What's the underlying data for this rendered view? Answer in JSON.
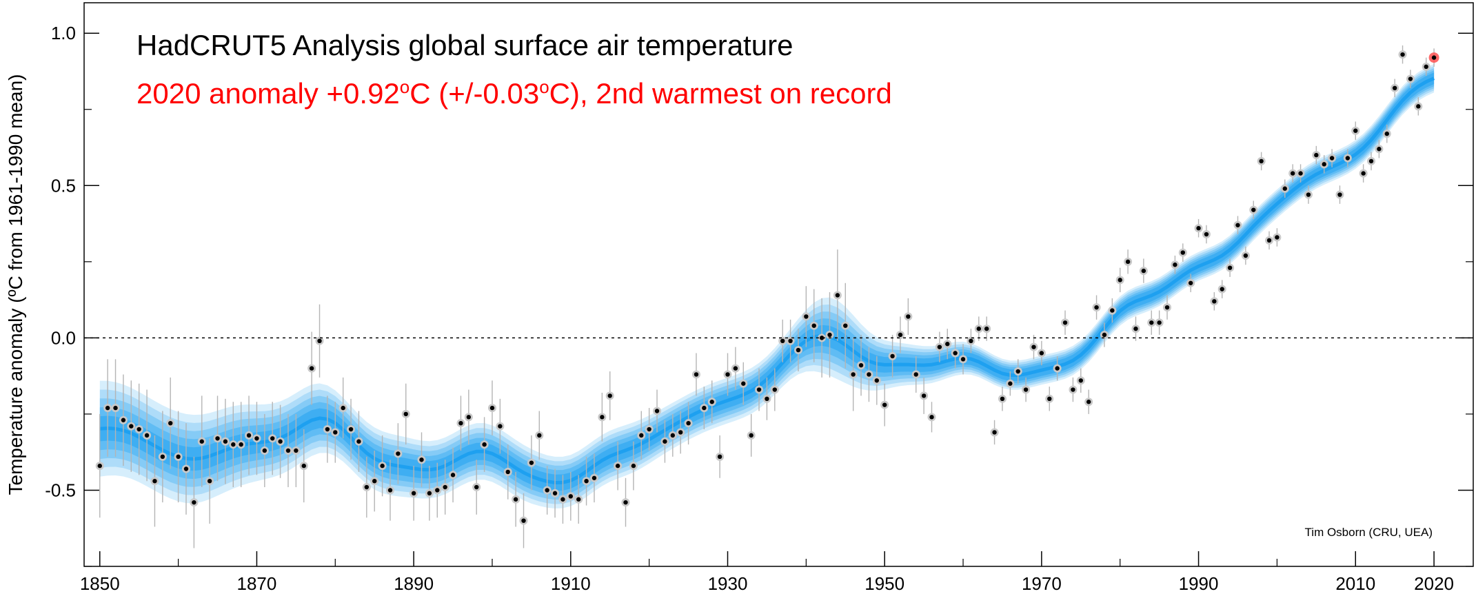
{
  "chart_data": {
    "type": "scatter",
    "title": "HadCRUT5 Analysis global surface air temperature",
    "subtitle_prefix": "2020 anomaly +0.92",
    "subtitle_mid": "C (+/-0.03",
    "subtitle_suffix": "C), 2nd warmest on record",
    "degree_symbol": "o",
    "ylabel": "Temperature anomaly (ºC from 1961-1990 mean)",
    "credit": "Tim Osborn (CRU, UEA)",
    "xlim": [
      1848,
      2025
    ],
    "ylim": [
      -0.75,
      1.1
    ],
    "x_ticks": [
      1850,
      1870,
      1890,
      1910,
      1930,
      1950,
      1970,
      1990,
      2010,
      2020
    ],
    "x_tick_labels": [
      "1850",
      "1870",
      "1890",
      "1910",
      "1930",
      "1950",
      "1970",
      "1990",
      "2010",
      "2020"
    ],
    "y_ticks": [
      -0.5,
      0.0,
      0.5,
      1.0
    ],
    "y_tick_labels": [
      "-0.5",
      "0.0",
      "0.5",
      "1.0"
    ],
    "zero_line": true,
    "highlight_year": 2020,
    "colors": {
      "band": "#1ea0f0",
      "points": "#000000",
      "point_halo": "#c8c8c8",
      "error_bar": "#b4b4b4",
      "highlight": "#ff5050",
      "subtitle": "#ff0000"
    },
    "series": [
      {
        "years": [
          1850,
          1851,
          1852,
          1853,
          1854,
          1855,
          1856,
          1857,
          1858,
          1859,
          1860,
          1861,
          1862,
          1863,
          1864,
          1865,
          1866,
          1867,
          1868,
          1869,
          1870,
          1871,
          1872,
          1873,
          1874,
          1875,
          1876,
          1877,
          1878,
          1879,
          1880,
          1881,
          1882,
          1883,
          1884,
          1885,
          1886,
          1887,
          1888,
          1889,
          1890,
          1891,
          1892,
          1893,
          1894,
          1895,
          1896,
          1897,
          1898,
          1899,
          1900,
          1901,
          1902,
          1903,
          1904,
          1905,
          1906,
          1907,
          1908,
          1909,
          1910,
          1911,
          1912,
          1913,
          1914,
          1915,
          1916,
          1917,
          1918,
          1919,
          1920,
          1921,
          1922,
          1923,
          1924,
          1925,
          1926,
          1927,
          1928,
          1929,
          1930,
          1931,
          1932,
          1933,
          1934,
          1935,
          1936,
          1937,
          1938,
          1939,
          1940,
          1941,
          1942,
          1943,
          1944,
          1945,
          1946,
          1947,
          1948,
          1949,
          1950,
          1951,
          1952,
          1953,
          1954,
          1955,
          1956,
          1957,
          1958,
          1959,
          1960,
          1961,
          1962,
          1963,
          1964,
          1965,
          1966,
          1967,
          1968,
          1969,
          1970,
          1971,
          1972,
          1973,
          1974,
          1975,
          1976,
          1977,
          1978,
          1979,
          1980,
          1981,
          1982,
          1983,
          1984,
          1985,
          1986,
          1987,
          1988,
          1989,
          1990,
          1991,
          1992,
          1993,
          1994,
          1995,
          1996,
          1997,
          1998,
          1999,
          2000,
          2001,
          2002,
          2003,
          2004,
          2005,
          2006,
          2007,
          2008,
          2009,
          2010,
          2011,
          2012,
          2013,
          2014,
          2015,
          2016,
          2017,
          2018,
          2019,
          2020
        ],
        "anomaly": [
          -0.42,
          -0.23,
          -0.23,
          -0.27,
          -0.29,
          -0.3,
          -0.32,
          -0.47,
          -0.39,
          -0.28,
          -0.39,
          -0.43,
          -0.54,
          -0.34,
          -0.47,
          -0.33,
          -0.34,
          -0.35,
          -0.35,
          -0.32,
          -0.33,
          -0.37,
          -0.33,
          -0.34,
          -0.37,
          -0.37,
          -0.42,
          -0.1,
          -0.01,
          -0.3,
          -0.31,
          -0.23,
          -0.3,
          -0.34,
          -0.49,
          -0.47,
          -0.42,
          -0.5,
          -0.38,
          -0.25,
          -0.51,
          -0.4,
          -0.51,
          -0.5,
          -0.49,
          -0.45,
          -0.28,
          -0.26,
          -0.49,
          -0.35,
          -0.23,
          -0.29,
          -0.44,
          -0.53,
          -0.6,
          -0.41,
          -0.32,
          -0.5,
          -0.51,
          -0.53,
          -0.52,
          -0.53,
          -0.47,
          -0.46,
          -0.26,
          -0.19,
          -0.42,
          -0.54,
          -0.42,
          -0.32,
          -0.3,
          -0.24,
          -0.34,
          -0.32,
          -0.31,
          -0.28,
          -0.12,
          -0.23,
          -0.21,
          -0.39,
          -0.12,
          -0.1,
          -0.15,
          -0.32,
          -0.17,
          -0.2,
          -0.17,
          -0.01,
          -0.01,
          -0.04,
          0.07,
          0.04,
          0.0,
          0.01,
          0.14,
          0.04,
          -0.12,
          -0.09,
          -0.12,
          -0.14,
          -0.22,
          -0.06,
          0.01,
          0.07,
          -0.12,
          -0.19,
          -0.26,
          -0.03,
          -0.02,
          -0.05,
          -0.07,
          -0.01,
          0.03,
          0.03,
          -0.31,
          -0.2,
          -0.15,
          -0.11,
          -0.17,
          -0.03,
          -0.05,
          -0.2,
          -0.1,
          0.05,
          -0.17,
          -0.14,
          -0.21,
          0.1,
          0.01,
          0.09,
          0.19,
          0.25,
          0.03,
          0.22,
          0.05,
          0.05,
          0.1,
          0.24,
          0.28,
          0.18,
          0.36,
          0.34,
          0.12,
          0.16,
          0.23,
          0.37,
          0.27,
          0.42,
          0.58,
          0.32,
          0.33,
          0.49,
          0.54,
          0.54,
          0.47,
          0.6,
          0.57,
          0.59,
          0.47,
          0.59,
          0.68,
          0.54,
          0.58,
          0.62,
          0.67,
          0.82,
          0.93,
          0.85,
          0.76,
          0.89,
          0.92
        ],
        "uncertainty": [
          0.17,
          0.16,
          0.16,
          0.15,
          0.15,
          0.15,
          0.15,
          0.15,
          0.15,
          0.15,
          0.15,
          0.15,
          0.15,
          0.15,
          0.14,
          0.14,
          0.14,
          0.14,
          0.14,
          0.13,
          0.12,
          0.12,
          0.12,
          0.12,
          0.12,
          0.12,
          0.12,
          0.12,
          0.12,
          0.11,
          0.1,
          0.1,
          0.1,
          0.1,
          0.1,
          0.1,
          0.1,
          0.1,
          0.1,
          0.1,
          0.09,
          0.09,
          0.09,
          0.09,
          0.09,
          0.09,
          0.09,
          0.09,
          0.09,
          0.09,
          0.09,
          0.09,
          0.09,
          0.09,
          0.09,
          0.09,
          0.08,
          0.08,
          0.08,
          0.08,
          0.08,
          0.08,
          0.08,
          0.08,
          0.08,
          0.08,
          0.08,
          0.08,
          0.08,
          0.08,
          0.07,
          0.07,
          0.07,
          0.07,
          0.07,
          0.07,
          0.07,
          0.07,
          0.07,
          0.07,
          0.07,
          0.07,
          0.07,
          0.07,
          0.07,
          0.07,
          0.07,
          0.07,
          0.07,
          0.07,
          0.1,
          0.12,
          0.13,
          0.14,
          0.15,
          0.14,
          0.12,
          0.1,
          0.09,
          0.08,
          0.07,
          0.07,
          0.06,
          0.06,
          0.06,
          0.06,
          0.05,
          0.05,
          0.05,
          0.05,
          0.05,
          0.04,
          0.04,
          0.04,
          0.04,
          0.04,
          0.04,
          0.04,
          0.04,
          0.04,
          0.04,
          0.04,
          0.04,
          0.04,
          0.04,
          0.04,
          0.04,
          0.04,
          0.04,
          0.04,
          0.04,
          0.04,
          0.04,
          0.04,
          0.04,
          0.04,
          0.04,
          0.03,
          0.03,
          0.03,
          0.03,
          0.03,
          0.03,
          0.03,
          0.03,
          0.03,
          0.03,
          0.03,
          0.03,
          0.03,
          0.03,
          0.03,
          0.03,
          0.03,
          0.03,
          0.03,
          0.03,
          0.03,
          0.03,
          0.03,
          0.03,
          0.03,
          0.03,
          0.03,
          0.03,
          0.03,
          0.03,
          0.03,
          0.03,
          0.03,
          0.03,
          0.03,
          0.03,
          0.03,
          0.03,
          0.03,
          0.03
        ]
      }
    ]
  }
}
